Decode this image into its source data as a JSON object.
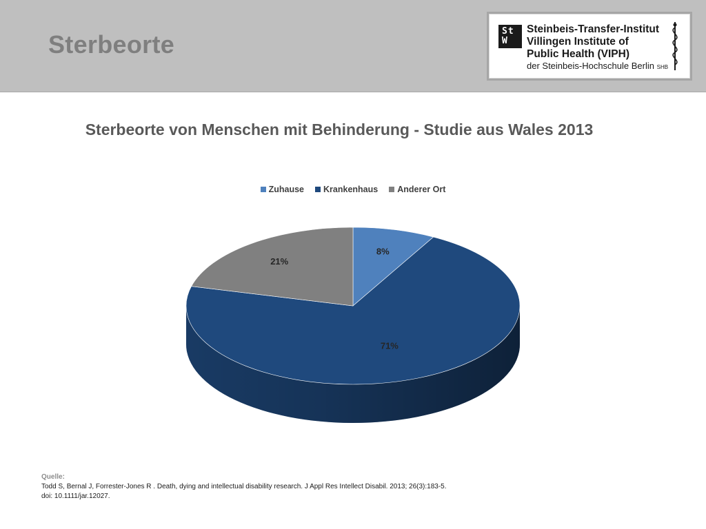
{
  "slide": {
    "title": "Sterbeorte"
  },
  "logo": {
    "mark_line1": "St",
    "mark_line2": "W",
    "line1": "Steinbeis-Transfer-Institut",
    "line2": "Villingen Institute of",
    "line3": "Public Health (VIPH)",
    "sub_main": "der Steinbeis-Hochschule Berlin ",
    "sub_small": "SHB"
  },
  "chart_data": {
    "type": "pie",
    "title": "Sterbeorte von Menschen mit Behinderung - Studie aus Wales 2013",
    "legend_position": "top",
    "slices": [
      {
        "name": "Zuhause",
        "value": 8,
        "label": "8%",
        "color": "#4f81bd"
      },
      {
        "name": "Krankenhaus",
        "value": 71,
        "label": "71%",
        "color": "#1f497d"
      },
      {
        "name": "Anderer Ort",
        "value": 21,
        "label": "21%",
        "color": "#808080"
      }
    ]
  },
  "source": {
    "label": "Quelle:",
    "line1": "Todd S, Bernal J, Forrester-Jones R . Death, dying and intellectual disability research. J Appl Res Intellect Disabil. 2013; 26(3):183-5.",
    "line2": "doi: 10.1111/jar.12027."
  }
}
